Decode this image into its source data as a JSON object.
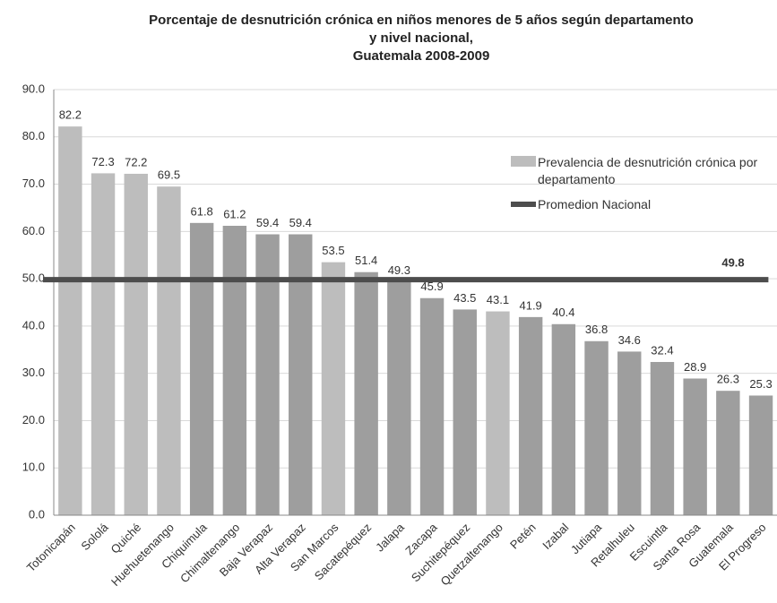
{
  "chart_data": {
    "type": "bar",
    "title": [
      "Porcentaje de desnutrición crónica en niños menores de 5 años según departamento",
      "y nivel nacional,",
      "Guatemala 2008-2009"
    ],
    "categories": [
      "Totonicapán",
      "Sololá",
      "Quiché",
      "Huehuetenango",
      "Chiquimula",
      "Chimaltenango",
      "Baja Verapaz",
      "Alta Verapaz",
      "San Marcos",
      "Sacatepéquez",
      "Jalapa",
      "Zacapa",
      "Suchitepéquez",
      "Quetzaltenango",
      "Petén",
      "Izabal",
      "Jutiapa",
      "Retalhuleu",
      "Escuintla",
      "Santa Rosa",
      "Guatemala",
      "El Progreso"
    ],
    "series": [
      {
        "name": "Prevalencia de desnutrición crónica por departamento",
        "values": [
          82.2,
          72.3,
          72.2,
          69.5,
          61.8,
          61.2,
          59.4,
          59.4,
          53.5,
          51.4,
          49.3,
          45.9,
          43.5,
          43.1,
          41.9,
          40.4,
          36.8,
          34.6,
          32.4,
          28.9,
          26.3,
          25.3
        ],
        "colors": [
          "#bdbdbd",
          "#bdbdbd",
          "#bdbdbd",
          "#bdbdbd",
          "#9e9e9e",
          "#9e9e9e",
          "#9e9e9e",
          "#9e9e9e",
          "#bdbdbd",
          "#9e9e9e",
          "#9e9e9e",
          "#9e9e9e",
          "#9e9e9e",
          "#bdbdbd",
          "#9e9e9e",
          "#9e9e9e",
          "#9e9e9e",
          "#9e9e9e",
          "#9e9e9e",
          "#9e9e9e",
          "#9e9e9e",
          "#9e9e9e"
        ]
      }
    ],
    "average": {
      "name": "Promedion Nacional",
      "value": 49.8,
      "color": "#4d4d4d"
    },
    "ylim": [
      0,
      90
    ],
    "yticks": [
      {
        "value": 0,
        "label": "0.0"
      },
      {
        "value": 10,
        "label": "10.0"
      },
      {
        "value": 20,
        "label": "20.0"
      },
      {
        "value": 30,
        "label": "30.0"
      },
      {
        "value": 40,
        "label": "40.0"
      },
      {
        "value": 50,
        "label": "50.0"
      },
      {
        "value": 60,
        "label": "60.0"
      },
      {
        "value": 70,
        "label": "70.0"
      },
      {
        "value": 80,
        "label": "80.0"
      },
      {
        "value": 90,
        "label": "90.0"
      }
    ],
    "grid": true
  }
}
